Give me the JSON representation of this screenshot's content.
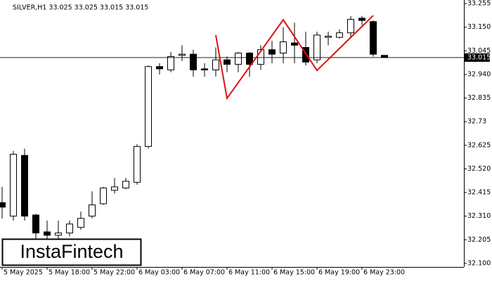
{
  "chart_data": {
    "type": "candlestick",
    "title": "SILVER,H1  33.025 33.025 33.015 33.015",
    "categories": [
      "5 May 2025",
      null,
      null,
      null,
      "5 May 18:00",
      null,
      null,
      null,
      "5 May 22:00",
      null,
      null,
      null,
      "6 May 03:00",
      null,
      null,
      null,
      "6 May 07:00",
      null,
      null,
      null,
      "6 May 11:00",
      null,
      null,
      null,
      "6 May 15:00",
      null,
      null,
      null,
      "6 May 19:00",
      null,
      null,
      null,
      "6 May 23:00",
      null,
      null
    ],
    "open": [
      32.37,
      32.31,
      32.58,
      32.315,
      32.24,
      32.225,
      32.235,
      32.26,
      32.31,
      32.365,
      32.425,
      32.435,
      32.46,
      32.62,
      32.975,
      32.96,
      33.025,
      33.03,
      32.965,
      32.96,
      33.005,
      32.985,
      33.035,
      32.985,
      33.05,
      33.035,
      33.08,
      33.06,
      33.005,
      33.105,
      33.105,
      33.125,
      33.19,
      33.175,
      33.025
    ],
    "high": [
      32.44,
      32.6,
      32.61,
      32.32,
      32.29,
      32.29,
      32.29,
      32.33,
      32.42,
      32.44,
      32.48,
      32.48,
      32.63,
      32.98,
      32.99,
      33.04,
      33.07,
      33.05,
      32.99,
      33.06,
      33.02,
      33.04,
      33.04,
      33.07,
      33.09,
      33.15,
      33.17,
      33.13,
      33.13,
      33.13,
      33.14,
      33.2,
      33.2,
      33.18,
      33.025
    ],
    "low": [
      32.3,
      32.29,
      32.29,
      32.21,
      32.21,
      32.21,
      32.22,
      32.25,
      32.3,
      32.36,
      32.41,
      32.43,
      32.45,
      32.61,
      32.94,
      32.95,
      33.0,
      32.93,
      32.93,
      32.93,
      32.95,
      32.95,
      32.93,
      32.96,
      32.99,
      32.99,
      32.99,
      32.98,
      32.99,
      33.07,
      33.1,
      33.1,
      33.16,
      33.02,
      33.015
    ],
    "close": [
      32.35,
      32.585,
      32.31,
      32.235,
      32.225,
      32.235,
      32.275,
      32.3,
      32.36,
      32.435,
      32.44,
      32.465,
      32.62,
      32.975,
      32.965,
      33.02,
      33.03,
      32.96,
      32.96,
      33.005,
      32.985,
      33.035,
      32.985,
      33.05,
      33.03,
      33.085,
      33.07,
      32.995,
      33.115,
      33.11,
      33.125,
      33.185,
      33.18,
      33.03,
      33.015
    ],
    "pattern": {
      "color": "#e01010",
      "x": [
        19,
        20,
        25,
        28,
        33
      ],
      "values": [
        33.115,
        32.834,
        33.183,
        32.958,
        33.202
      ]
    },
    "last_price": 33.015,
    "ylim": [
      32.084,
      33.271
    ],
    "yticks": [
      33.255,
      {
        "value": 33.15,
        "label": "33.150"
      },
      33.045,
      {
        "value": 32.94,
        "label": "32.940"
      },
      32.835,
      32.73,
      32.625,
      {
        "value": 32.52,
        "label": "32.520"
      },
      32.415,
      {
        "value": 32.31,
        "label": "32.310"
      },
      32.205,
      {
        "value": 32.1,
        "label": "32.100"
      }
    ],
    "watermark": "InstaFintech"
  }
}
